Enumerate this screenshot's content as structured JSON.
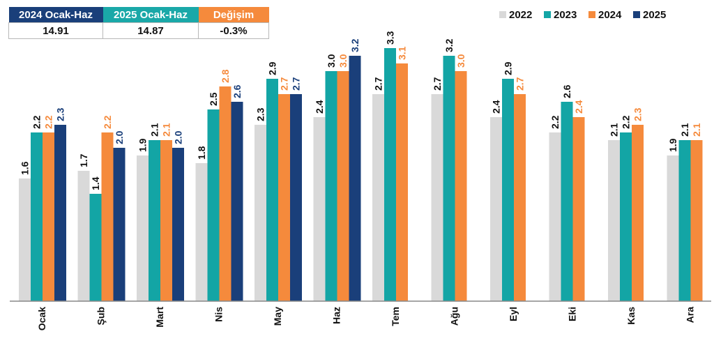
{
  "summary_table": {
    "headers": [
      {
        "label": "2024 Ocak-Haz",
        "color": "#1a3f7a"
      },
      {
        "label": "2025 Ocak-Haz",
        "color": "#1aa8a8"
      },
      {
        "label": "Değişim",
        "color": "#f58a3c"
      }
    ],
    "values": [
      "14.91",
      "14.87",
      "-0.3%"
    ]
  },
  "chart_data": {
    "type": "bar",
    "title": "",
    "xlabel": "",
    "ylabel": "",
    "ylim": [
      0,
      3.3
    ],
    "grid": false,
    "legend_position": "top-right",
    "categories": [
      "Ocak",
      "Şub",
      "Mart",
      "Nis",
      "May",
      "Haz",
      "Tem",
      "Ağu",
      "Eyl",
      "Eki",
      "Kas",
      "Ara"
    ],
    "series": [
      {
        "name": "2022",
        "color": "#d9d9d9",
        "label_color": "#111111",
        "values": [
          1.6,
          1.7,
          1.9,
          1.8,
          2.3,
          2.4,
          2.7,
          2.7,
          2.4,
          2.2,
          2.1,
          1.9
        ]
      },
      {
        "name": "2023",
        "color": "#13a5a5",
        "label_color": "#111111",
        "values": [
          2.2,
          1.4,
          2.1,
          2.5,
          2.9,
          3.0,
          3.3,
          3.2,
          2.9,
          2.6,
          2.2,
          2.1
        ]
      },
      {
        "name": "2024",
        "color": "#f58a3c",
        "label_color": "#f58a3c",
        "values": [
          2.2,
          2.2,
          2.1,
          2.8,
          2.7,
          3.0,
          3.1,
          3.0,
          2.7,
          2.4,
          2.3,
          2.1
        ]
      },
      {
        "name": "2025",
        "color": "#1a3f7a",
        "label_color": "#1a3f7a",
        "values": [
          2.3,
          2.0,
          2.0,
          2.6,
          2.7,
          3.2,
          null,
          null,
          null,
          null,
          null,
          null
        ]
      }
    ]
  }
}
